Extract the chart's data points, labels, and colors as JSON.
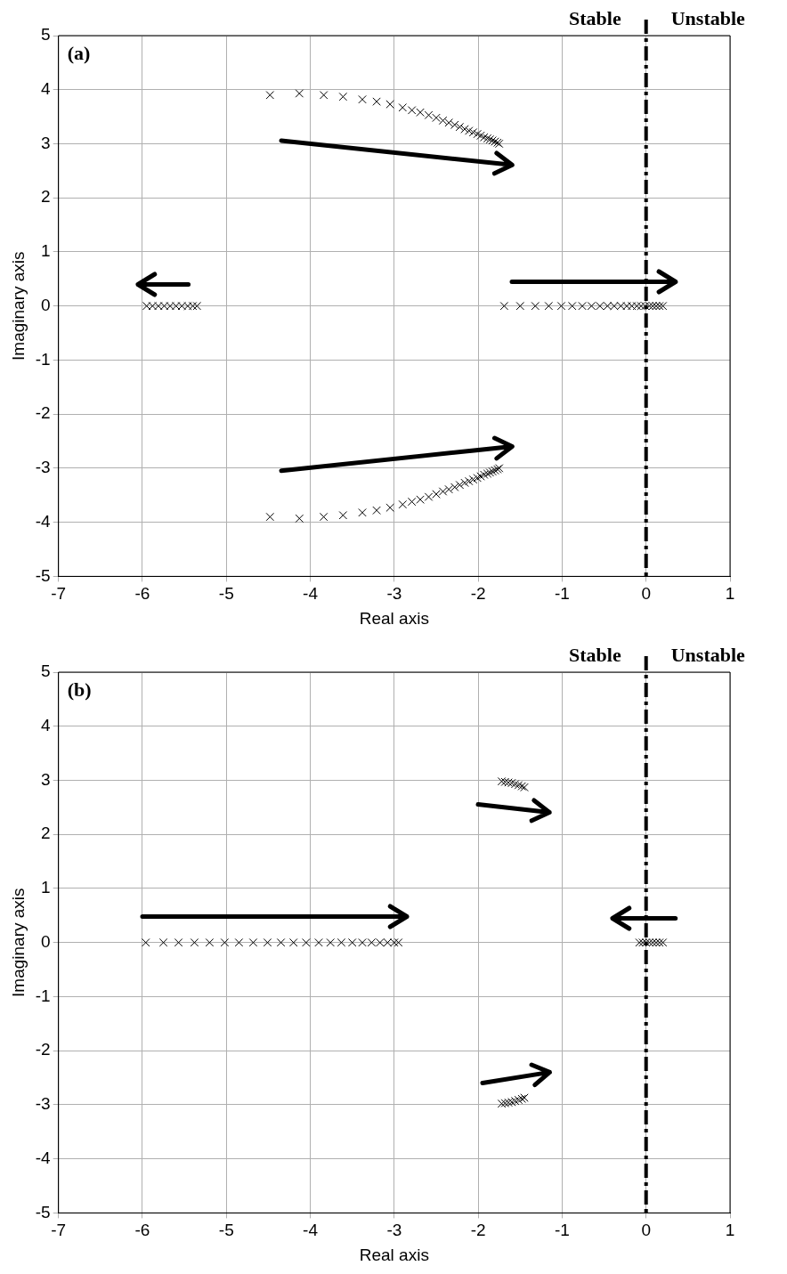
{
  "chart_data": [
    {
      "type": "scatter",
      "title": "(a)",
      "xlabel": "Real axis",
      "ylabel": "Imaginary axis",
      "xlim": [
        -7,
        1
      ],
      "xticks": [
        -7,
        -6,
        -5,
        -4,
        -3,
        -2,
        -1,
        0,
        1
      ],
      "ylim": [
        -5,
        5
      ],
      "yticks": [
        -5,
        -4,
        -3,
        -2,
        -1,
        0,
        1,
        2,
        3,
        4,
        5
      ],
      "grid": true,
      "legend": false,
      "marker": "cross",
      "annotations": [
        "Stable",
        "Unstable"
      ],
      "ref_lines": [
        {
          "axis": "x",
          "value": 0,
          "color": "#000000",
          "line_style": "dashed"
        }
      ],
      "series": [
        {
          "color": "#000000",
          "x": [
            -4.48,
            -4.13,
            -3.84,
            -3.61,
            -3.38,
            -3.21,
            -3.05,
            -2.9,
            -2.79,
            -2.69,
            -2.59,
            -2.5,
            -2.42,
            -2.35,
            -2.28,
            -2.22,
            -2.16,
            -2.11,
            -2.06,
            -2.01,
            -1.97,
            -1.93,
            -1.89,
            -1.86,
            -1.83,
            -1.8,
            -1.77,
            -1.75
          ],
          "values": [
            3.9,
            3.93,
            3.9,
            3.87,
            3.82,
            3.78,
            3.73,
            3.67,
            3.62,
            3.58,
            3.53,
            3.48,
            3.43,
            3.39,
            3.35,
            3.31,
            3.27,
            3.24,
            3.21,
            3.18,
            3.15,
            3.12,
            3.1,
            3.08,
            3.06,
            3.04,
            3.02,
            3.0
          ]
        },
        {
          "color": "#000000",
          "x": [
            -4.48,
            -4.13,
            -3.84,
            -3.61,
            -3.38,
            -3.21,
            -3.05,
            -2.9,
            -2.79,
            -2.69,
            -2.59,
            -2.5,
            -2.42,
            -2.35,
            -2.28,
            -2.22,
            -2.16,
            -2.11,
            -2.06,
            -2.01,
            -1.97,
            -1.93,
            -1.89,
            -1.86,
            -1.83,
            -1.8,
            -1.77,
            -1.75
          ],
          "values": [
            -3.9,
            -3.93,
            -3.9,
            -3.87,
            -3.82,
            -3.78,
            -3.73,
            -3.67,
            -3.62,
            -3.58,
            -3.53,
            -3.48,
            -3.43,
            -3.39,
            -3.35,
            -3.31,
            -3.27,
            -3.24,
            -3.21,
            -3.18,
            -3.15,
            -3.12,
            -3.1,
            -3.08,
            -3.06,
            -3.04,
            -3.02,
            -3.0
          ]
        },
        {
          "color": "#000000",
          "x": [
            -5.95,
            -5.88,
            -5.81,
            -5.74,
            -5.67,
            -5.6,
            -5.53,
            -5.46,
            -5.4,
            -5.35
          ],
          "values": [
            0,
            0,
            0,
            0,
            0,
            0,
            0,
            0,
            0,
            0
          ]
        },
        {
          "color": "#000000",
          "x": [
            -1.69,
            -1.5,
            -1.32,
            -1.16,
            -1.01,
            -0.88,
            -0.76,
            -0.65,
            -0.55,
            -0.46,
            -0.38,
            -0.3,
            -0.23,
            -0.17,
            -0.11,
            -0.06,
            -0.01,
            0.04,
            0.08,
            0.12,
            0.16,
            0.2
          ],
          "values": [
            0,
            0,
            0,
            0,
            0,
            0,
            0,
            0,
            0,
            0,
            0,
            0,
            0,
            0,
            0,
            0,
            0,
            0,
            0,
            0,
            0,
            0
          ]
        }
      ]
    },
    {
      "type": "scatter",
      "title": "(b)",
      "xlabel": "Real axis",
      "ylabel": "Imaginary axis",
      "xlim": [
        -7,
        1
      ],
      "xticks": [
        -7,
        -6,
        -5,
        -4,
        -3,
        -2,
        -1,
        0,
        1
      ],
      "ylim": [
        -5,
        5
      ],
      "yticks": [
        -5,
        -4,
        -3,
        -2,
        -1,
        0,
        1,
        2,
        3,
        4,
        5
      ],
      "grid": true,
      "legend": false,
      "marker": "cross",
      "annotations": [
        "Stable",
        "Unstable"
      ],
      "ref_lines": [
        {
          "axis": "x",
          "value": 0,
          "color": "#000000",
          "line_style": "dashed"
        }
      ],
      "series": [
        {
          "color": "#000000",
          "x": [
            -1.72,
            -1.68,
            -1.64,
            -1.6,
            -1.56,
            -1.52,
            -1.48,
            -1.45
          ],
          "values": [
            2.98,
            2.97,
            2.96,
            2.95,
            2.93,
            2.91,
            2.89,
            2.87
          ]
        },
        {
          "color": "#000000",
          "x": [
            -1.72,
            -1.68,
            -1.64,
            -1.6,
            -1.56,
            -1.52,
            -1.48,
            -1.45
          ],
          "values": [
            -2.98,
            -2.97,
            -2.96,
            -2.95,
            -2.93,
            -2.91,
            -2.89,
            -2.87
          ]
        },
        {
          "color": "#000000",
          "x": [
            -5.96,
            -5.75,
            -5.57,
            -5.38,
            -5.2,
            -5.02,
            -4.85,
            -4.68,
            -4.51,
            -4.35,
            -4.2,
            -4.05,
            -3.9,
            -3.76,
            -3.63,
            -3.5,
            -3.38,
            -3.27,
            -3.17,
            -3.08,
            -3.0,
            -2.95
          ],
          "values": [
            0,
            0,
            0,
            0,
            0,
            0,
            0,
            0,
            0,
            0,
            0,
            0,
            0,
            0,
            0,
            0,
            0,
            0,
            0,
            0,
            0,
            0
          ]
        },
        {
          "color": "#000000",
          "x": [
            -0.08,
            -0.04,
            0,
            0.04,
            0.08,
            0.12,
            0.16,
            0.2
          ],
          "values": [
            0,
            0,
            0,
            0,
            0,
            0,
            0,
            0
          ]
        }
      ]
    }
  ]
}
